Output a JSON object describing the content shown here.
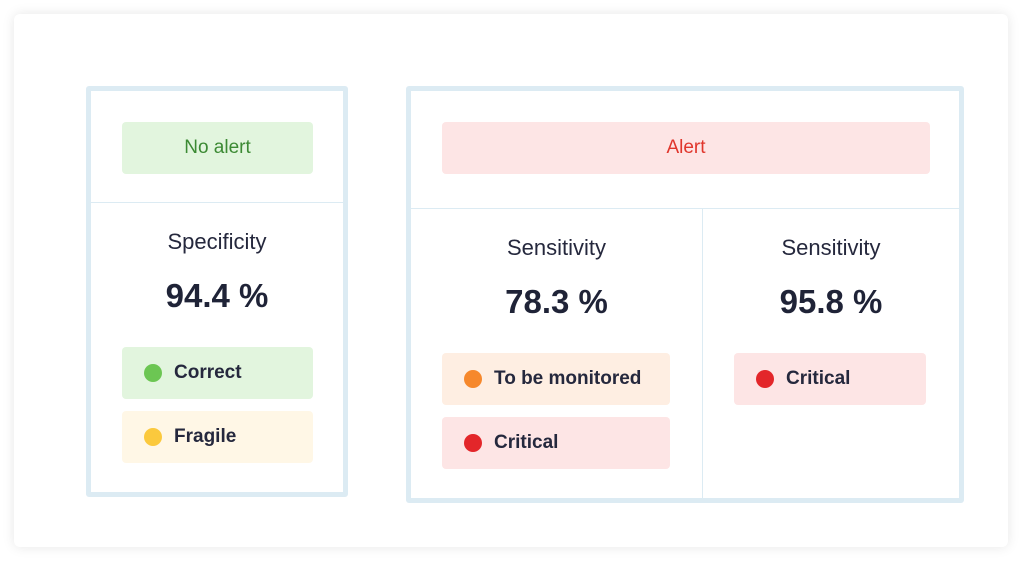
{
  "no_alert_panel": {
    "header": "No alert",
    "metric_label": "Specificity",
    "metric_value": "94.4 %",
    "chips": [
      {
        "label": "Correct",
        "dot_color": "#6cc653",
        "bg_color": "#e2f5de"
      },
      {
        "label": "Fragile",
        "dot_color": "#fbc93d",
        "bg_color": "#fff7e6"
      }
    ]
  },
  "alert_panel": {
    "header": "Alert",
    "columns": [
      {
        "metric_label": "Sensitivity",
        "metric_value": "78.3 %",
        "chips": [
          {
            "label": "To be monitored",
            "dot_color": "#f6882c",
            "bg_color": "#feeee2"
          },
          {
            "label": "Critical",
            "dot_color": "#e3262a",
            "bg_color": "#fde5e5"
          }
        ]
      },
      {
        "metric_label": "Sensitivity",
        "metric_value": "95.8 %",
        "chips": [
          {
            "label": "Critical",
            "dot_color": "#e3262a",
            "bg_color": "#fde5e5"
          }
        ]
      }
    ]
  },
  "colors": {
    "panel_border": "#dcebf3",
    "no_alert_text": "#3c8a34",
    "alert_text": "#e0362c"
  }
}
